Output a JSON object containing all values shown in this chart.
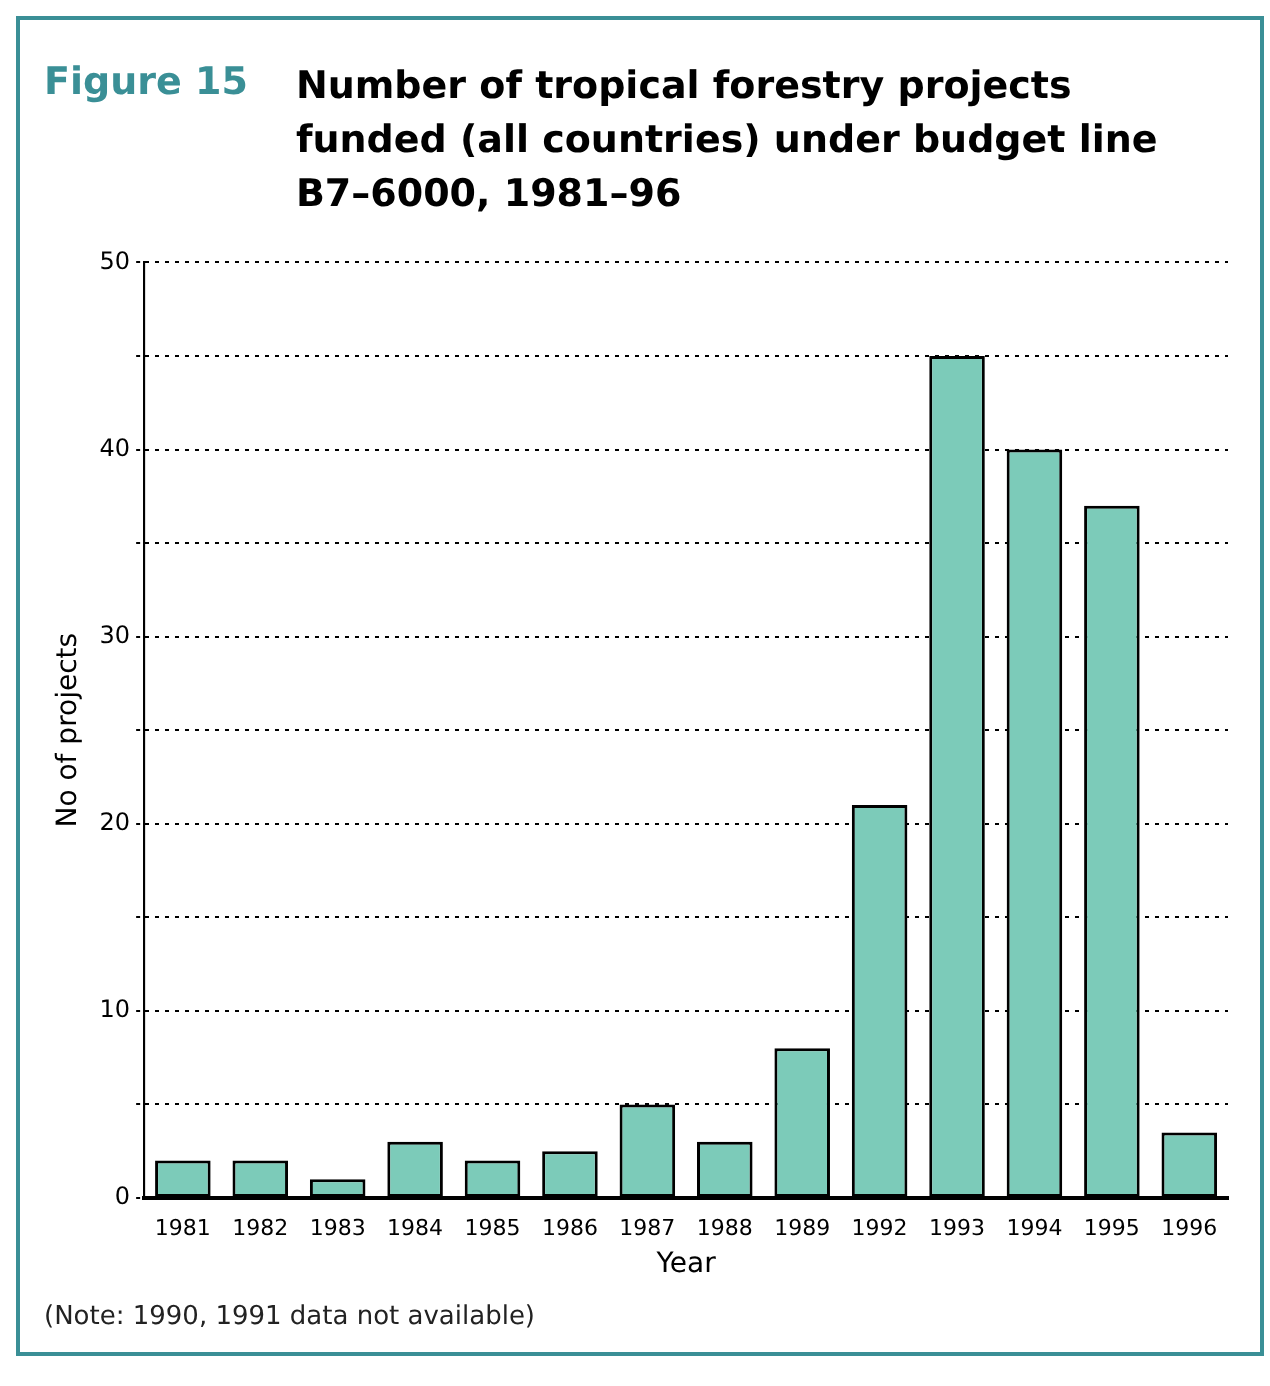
{
  "chart_data": {
    "type": "bar",
    "subtitle": "Figure 15",
    "title": "Number of tropical forestry projects funded (all countries) under budget line B7–6000, 1981–96",
    "xlabel": "Year",
    "ylabel": "No of projects",
    "categories": [
      "1981",
      "1982",
      "1983",
      "1984",
      "1985",
      "1986",
      "1987",
      "1988",
      "1989",
      "1992",
      "1993",
      "1994",
      "1995",
      "1996"
    ],
    "values": [
      2,
      2,
      1,
      3,
      2,
      2.5,
      5,
      3,
      8,
      21,
      45,
      40,
      37,
      3.5
    ],
    "color": "#7ccbb9",
    "ylim": [
      0,
      50
    ],
    "yticks": [
      0,
      {
        "value": 5,
        "label": null
      },
      10,
      {
        "value": 15,
        "label": null
      },
      20,
      {
        "value": 25,
        "label": null
      },
      30,
      {
        "value": 35,
        "label": null
      },
      40,
      {
        "value": 45,
        "label": null
      },
      50
    ],
    "grid": "y",
    "legend": false,
    "annotations": [
      "(Note: 1990, 1991 data not available)"
    ]
  }
}
